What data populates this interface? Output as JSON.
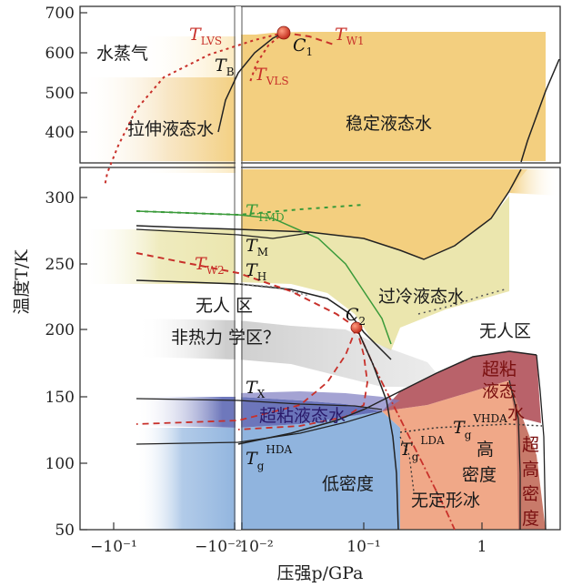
{
  "axes": {
    "xlabel": "压强p/GPa",
    "ylabel": "温度T/K",
    "x_ticks": [
      "−10⁻¹",
      "−10⁻²",
      "10⁻²",
      "10⁻¹",
      "1"
    ],
    "y_ticks_top": [
      "700",
      "600",
      "500",
      "400"
    ],
    "y_ticks_bottom": [
      "300",
      "250",
      "200",
      "150",
      "100",
      "50"
    ]
  },
  "regions": {
    "vapor": "水蒸气",
    "stretched": "拉伸液态水",
    "stable": "稳定液态水",
    "supercooled": "过冷液态水",
    "no_mans_land_a": "无人 区",
    "no_mans_land_b": "无人区",
    "non_thermal": "非热力 学区？",
    "ultraviscous": "超粘液态水",
    "ultraviscous_right_1": "超粘",
    "ultraviscous_right_2": "液态",
    "ultraviscous_right_3": "水",
    "low_density": "低密度",
    "high_density_1": "高",
    "high_density_2": "密度",
    "amorphous_ice": "无定形冰",
    "vhda_1": "超",
    "vhda_2": "高",
    "vhda_3": "密",
    "vhda_4": "度"
  },
  "labels": {
    "T_LVS": {
      "main": "T",
      "sub": "LVS"
    },
    "T_W1": {
      "main": "T",
      "sub": "W1"
    },
    "C1": {
      "main": "C",
      "sub": "1"
    },
    "T_B": {
      "main": "T",
      "sub": "B"
    },
    "T_VLS": {
      "main": "T",
      "sub": "VLS"
    },
    "T_TMD": {
      "main": "T",
      "sub": "TMD"
    },
    "T_M": {
      "main": "T",
      "sub": "M"
    },
    "T_H": {
      "main": "T",
      "sub": "H"
    },
    "T_W2": {
      "main": "T",
      "sub": "W2"
    },
    "C2": {
      "main": "C",
      "sub": "2"
    },
    "T_X": {
      "main": "T",
      "sub": "X"
    },
    "Tg_HDA": {
      "main": "T",
      "sub": "g",
      "sup": "HDA"
    },
    "Tg_LDA": {
      "main": "T",
      "sub": "g",
      "sup": "LDA"
    },
    "Tg_VHDA": {
      "main": "T",
      "sub": "g",
      "sup": "VHDA"
    }
  },
  "colors": {
    "stable_liquid": "#f3cf7f",
    "supercooled": "#ebe6ae",
    "low_density": "#90b4de",
    "high_density": "#f0a888",
    "very_high_density": "#b9626a",
    "ultraviscous_band": "#5560b0",
    "red_curve": "#c8302a",
    "green_curve": "#3a9a3a",
    "critical_point": "#d03a25"
  }
}
